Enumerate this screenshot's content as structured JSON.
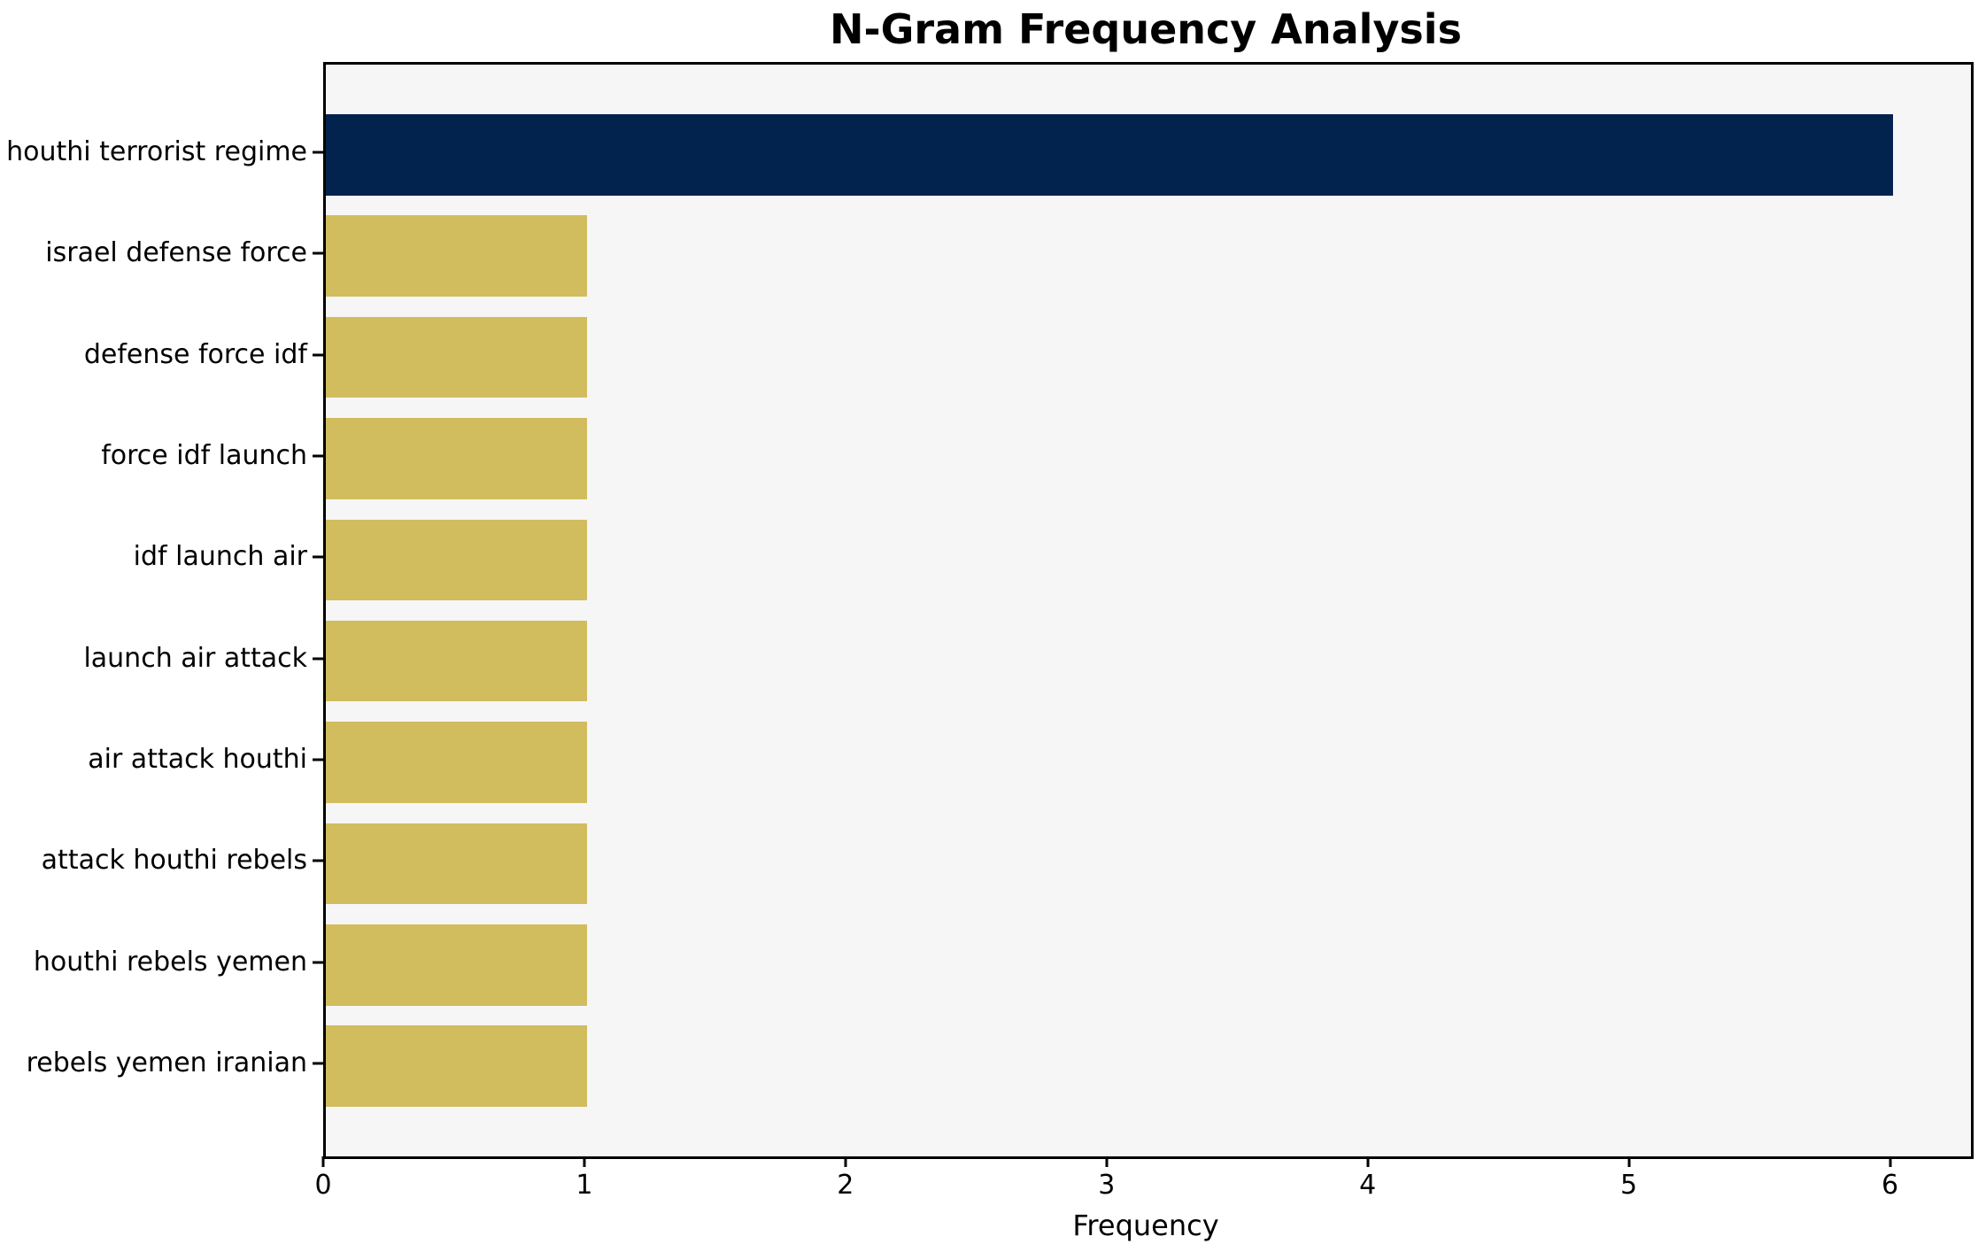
{
  "chart_data": {
    "type": "bar",
    "orientation": "horizontal",
    "title": "N-Gram Frequency Analysis",
    "xlabel": "Frequency",
    "ylabel": "",
    "categories": [
      "houthi terrorist regime",
      "israel defense force",
      "defense force idf",
      "force idf launch",
      "idf launch air",
      "launch air attack",
      "air attack houthi",
      "attack houthi rebels",
      "houthi rebels yemen",
      "rebels yemen iranian"
    ],
    "values": [
      6,
      1,
      1,
      1,
      1,
      1,
      1,
      1,
      1,
      1
    ],
    "x_ticks": [
      "0",
      "1",
      "2",
      "3",
      "4",
      "5",
      "6"
    ],
    "x_tick_values": [
      0,
      1,
      2,
      3,
      4,
      5,
      6
    ],
    "xlim": [
      0,
      6.3
    ],
    "grid": false,
    "legend": false,
    "bar_colors": [
      "#02234d",
      "#d1bd5e",
      "#d1bd5e",
      "#d1bd5e",
      "#d1bd5e",
      "#d1bd5e",
      "#d1bd5e",
      "#d1bd5e",
      "#d1bd5e",
      "#d1bd5e"
    ],
    "colors": {
      "highlight_bar": "#02234d",
      "default_bar": "#d1bd5e",
      "plot_background": "#f6f6f6",
      "page_background": "#ffffff",
      "axis": "#000000",
      "text": "#000000"
    }
  }
}
